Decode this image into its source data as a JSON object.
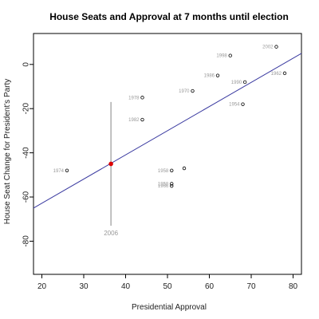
{
  "chart_data": {
    "type": "scatter",
    "title": "House Seats and Approval at  7  months until election",
    "xlabel": "Presidential Approval",
    "ylabel": "House Seat Change for President's Party",
    "xlim": [
      18,
      82
    ],
    "ylim": [
      -95,
      14
    ],
    "xticks": [
      20,
      30,
      40,
      50,
      60,
      70,
      80
    ],
    "yticks": [
      0,
      -20,
      -40,
      -60,
      -80
    ],
    "grid": false,
    "points": [
      {
        "label": "2002",
        "x": 76,
        "y": 8
      },
      {
        "label": "1998",
        "x": 65,
        "y": 4
      },
      {
        "label": "1986",
        "x": 62,
        "y": -5
      },
      {
        "label": "1962",
        "x": 78,
        "y": -4
      },
      {
        "label": "1990",
        "x": 68.5,
        "y": -8
      },
      {
        "label": "1970",
        "x": 56,
        "y": -12
      },
      {
        "label": "1978",
        "x": 44,
        "y": -15
      },
      {
        "label": "1954",
        "x": 68,
        "y": -18
      },
      {
        "label": "1982",
        "x": 44,
        "y": -25
      },
      {
        "label": "1974",
        "x": 26,
        "y": -48
      },
      {
        "label": "1958",
        "x": 51,
        "y": -48
      },
      {
        "label": "",
        "x": 54,
        "y": -47
      },
      {
        "label": "1950",
        "x": 51,
        "y": -54
      },
      {
        "label": "1966",
        "x": 51,
        "y": -55
      }
    ],
    "fit_line": {
      "x": [
        18,
        82
      ],
      "y": [
        -65,
        5
      ]
    },
    "prediction": {
      "label": "2006",
      "x": 36.5,
      "y": -45,
      "low": -73,
      "high": -17
    },
    "colors": {
      "points": "#000000",
      "labels": "#999999",
      "fit_line": "#3a3aa0",
      "prediction_point": "#dd0000",
      "interval": "#999999"
    }
  }
}
